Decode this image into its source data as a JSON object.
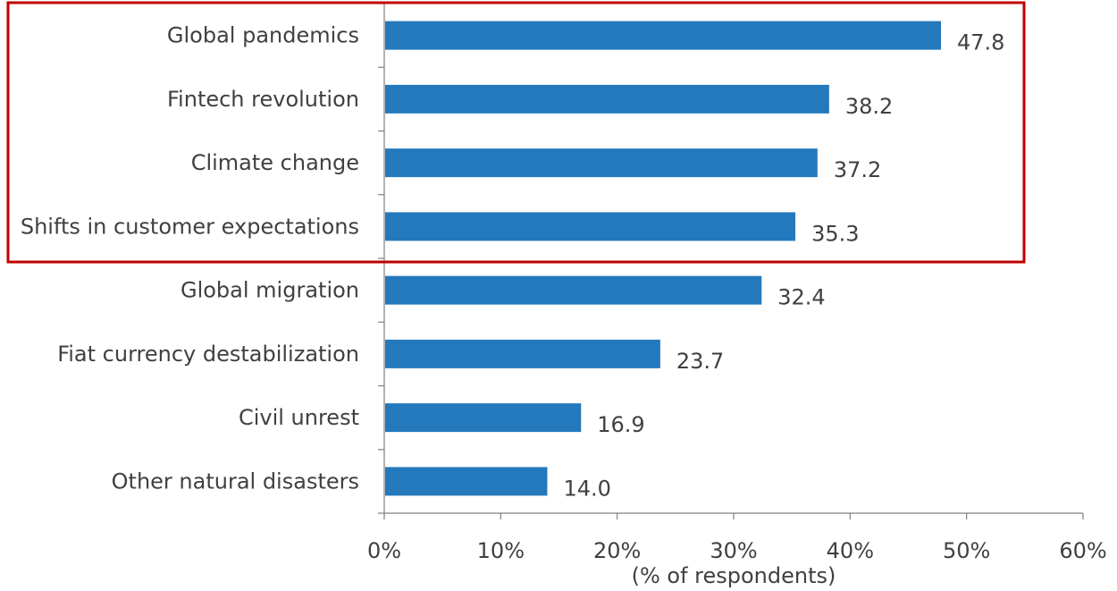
{
  "chart_data": {
    "type": "bar",
    "orientation": "horizontal",
    "categories": [
      "Global pandemics",
      "Fintech revolution",
      "Climate change",
      "Shifts in customer expectations",
      "Global migration",
      "Fiat currency destabilization",
      "Civil unrest",
      "Other natural disasters"
    ],
    "values": [
      47.8,
      38.2,
      37.2,
      35.3,
      32.4,
      23.7,
      16.9,
      14.0
    ],
    "value_labels": [
      "47.8",
      "38.2",
      "37.2",
      "35.3",
      "32.4",
      "23.7",
      "16.9",
      "14.0"
    ],
    "xlim": [
      0,
      60
    ],
    "xticks": [
      0,
      10,
      20,
      30,
      40,
      50,
      60
    ],
    "xtick_labels": [
      "0%",
      "10%",
      "20%",
      "30%",
      "40%",
      "50%",
      "60%"
    ],
    "xlabel": "(% of respondents)",
    "ylabel": "",
    "title": "",
    "grid": false,
    "bar_color": "#2479bd",
    "highlight": {
      "color": "#c00000",
      "categories": [
        "Global pandemics",
        "Fintech revolution",
        "Climate change",
        "Shifts in customer expectations"
      ]
    }
  }
}
